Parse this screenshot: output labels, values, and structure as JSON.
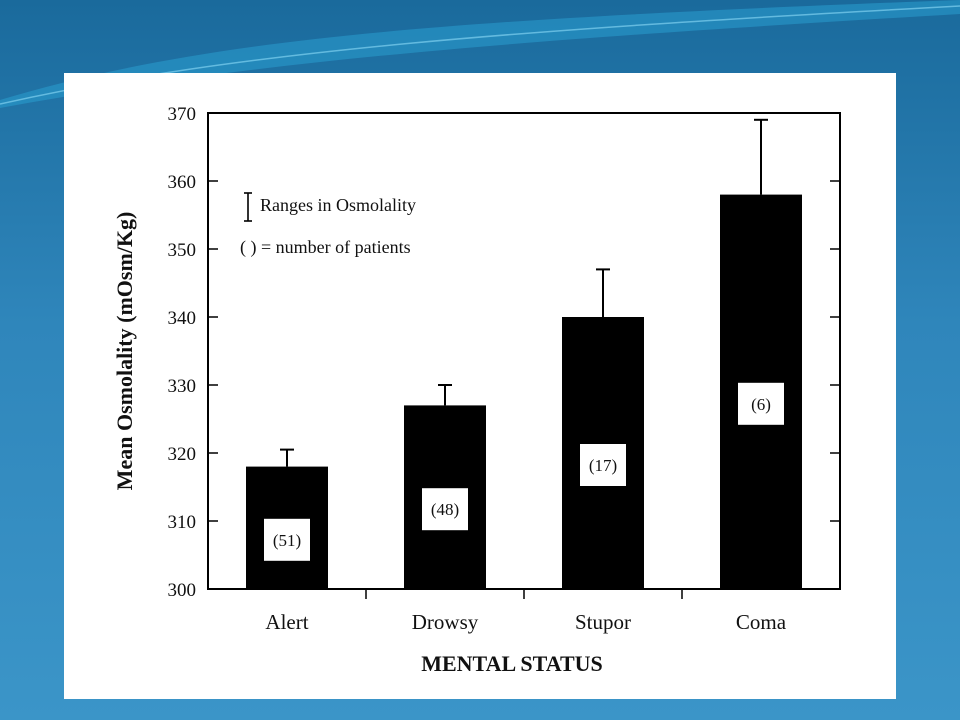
{
  "colors": {
    "background_top": "#1a6a9c",
    "background_bottom": "#3b95c8",
    "panel": "#ffffff",
    "bar": "#000000"
  },
  "chart_data": {
    "type": "bar",
    "title": "",
    "xlabel": "MENTAL STATUS",
    "ylabel": "Mean Osmolality (mOsm/Kg)",
    "ylim": [
      300,
      370
    ],
    "yticks": [
      300,
      310,
      320,
      330,
      340,
      350,
      360,
      370
    ],
    "categories": [
      "Alert",
      "Drowsy",
      "Stupor",
      "Coma"
    ],
    "values": [
      318,
      327,
      340,
      358
    ],
    "error_upper": [
      320.5,
      330,
      347,
      369
    ],
    "data_labels": [
      "(51)",
      "(48)",
      "(17)",
      "(6)"
    ],
    "grid": false,
    "legend": {
      "placement": "top-left",
      "entries": [
        "Ranges in Osmolality",
        "( ) = number of patients"
      ]
    }
  }
}
